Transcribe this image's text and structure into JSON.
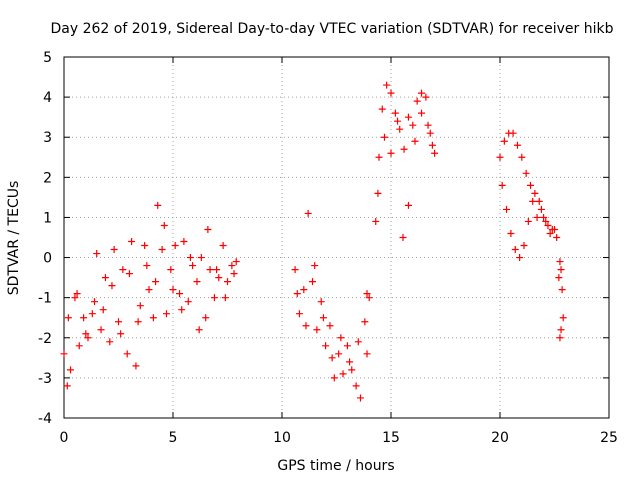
{
  "chart_data": {
    "type": "scatter",
    "title": "Day 262 of 2019, Sidereal Day-to-day VTEC variation (SDTVAR) for receiver hikb",
    "xlabel": "GPS time / hours",
    "ylabel": "SDTVAR / TECUs",
    "xlim": [
      0,
      25
    ],
    "ylim": [
      -4,
      5
    ],
    "x_ticks": [
      0,
      5,
      10,
      15,
      20,
      25
    ],
    "y_ticks": [
      -4,
      -3,
      -2,
      -1,
      0,
      1,
      2,
      3,
      4,
      5
    ],
    "grid": true,
    "marker": "+",
    "color": "#ff0000",
    "segments": [
      {
        "name": "segment-1",
        "x": [
          0.0,
          0.15,
          0.3,
          0.5,
          0.7,
          0.9,
          1.1,
          1.3,
          1.5,
          1.7,
          1.9,
          2.1,
          2.3,
          2.5,
          2.7,
          2.9,
          3.1,
          3.3,
          3.5,
          3.7,
          3.9,
          4.1,
          4.3,
          4.5,
          4.7,
          4.9,
          5.1,
          5.3,
          5.5,
          5.7,
          5.9,
          6.1,
          6.3,
          6.5,
          6.7,
          6.9,
          7.1,
          7.3,
          7.5,
          7.7,
          7.9
        ],
        "y": [
          -2.4,
          -3.2,
          -2.8,
          -1.0,
          -2.2,
          -1.5,
          -2.0,
          -1.4,
          0.1,
          -1.8,
          -0.5,
          -2.1,
          0.2,
          -1.6,
          -0.3,
          -2.4,
          0.4,
          -2.7,
          -1.2,
          0.3,
          -0.8,
          -1.5,
          1.3,
          0.2,
          -1.4,
          -0.3,
          0.3,
          -0.9,
          0.4,
          -1.1,
          -0.2,
          -0.6,
          0.0,
          -1.5,
          -0.3,
          -1.0,
          -0.5,
          0.3,
          -0.6,
          -0.2,
          -0.1
        ]
      },
      {
        "name": "segment-1-branch",
        "x": [
          0.2,
          0.6,
          1.0,
          1.4,
          1.8,
          2.2,
          2.6,
          3.0,
          3.4,
          3.8,
          4.2,
          4.6,
          5.0,
          5.4,
          5.8,
          6.2,
          6.6,
          7.0,
          7.4,
          7.8
        ],
        "y": [
          -1.5,
          -0.9,
          -1.9,
          -1.1,
          -1.3,
          -0.7,
          -1.9,
          -0.4,
          -1.6,
          -0.2,
          -0.6,
          0.8,
          -0.8,
          -1.3,
          0.0,
          -1.8,
          0.7,
          -0.3,
          -1.0,
          -0.4
        ]
      },
      {
        "name": "segment-2",
        "x": [
          10.6,
          10.8,
          11.0,
          11.2,
          11.4,
          11.6,
          11.8,
          12.0,
          12.2,
          12.4,
          12.6,
          12.8,
          13.0,
          13.2,
          13.4,
          13.6,
          13.8,
          13.9,
          14.0
        ],
        "y": [
          -0.3,
          -1.4,
          -0.8,
          1.1,
          -0.6,
          -1.8,
          -1.1,
          -2.2,
          -1.7,
          -3.0,
          -2.4,
          -2.9,
          -2.2,
          -2.8,
          -3.2,
          -3.5,
          -1.6,
          -0.9,
          -1.0
        ]
      },
      {
        "name": "segment-2-branch",
        "x": [
          10.7,
          11.1,
          11.5,
          11.9,
          12.3,
          12.7,
          13.1,
          13.5,
          13.9
        ],
        "y": [
          -0.9,
          -1.7,
          -0.2,
          -1.5,
          -2.5,
          -2.0,
          -2.6,
          -2.1,
          -2.4
        ]
      },
      {
        "name": "segment-3",
        "x": [
          14.3,
          14.45,
          14.6,
          14.8,
          15.0,
          15.2,
          15.4,
          15.6,
          15.8,
          16.0,
          16.2,
          16.4,
          16.6,
          16.8,
          17.0
        ],
        "y": [
          0.9,
          2.5,
          3.7,
          4.3,
          4.1,
          3.6,
          3.2,
          2.7,
          3.5,
          3.3,
          3.9,
          4.1,
          4.0,
          3.1,
          2.6
        ]
      },
      {
        "name": "segment-3-branch",
        "x": [
          14.4,
          14.7,
          15.0,
          15.3,
          15.55,
          15.8,
          16.1,
          16.4,
          16.7,
          16.9
        ],
        "y": [
          1.6,
          3.0,
          2.6,
          3.4,
          0.5,
          1.3,
          2.9,
          3.6,
          3.3,
          2.8
        ]
      },
      {
        "name": "segment-4",
        "x": [
          20.0,
          20.2,
          20.4,
          20.6,
          20.8,
          21.0,
          21.2,
          21.4,
          21.6,
          21.8,
          22.0,
          22.2,
          22.4,
          22.6
        ],
        "y": [
          2.5,
          2.9,
          3.1,
          3.1,
          2.8,
          2.5,
          2.1,
          1.8,
          1.6,
          1.4,
          1.0,
          0.8,
          0.7,
          0.5
        ]
      },
      {
        "name": "segment-4-branch",
        "x": [
          20.1,
          20.3,
          20.5,
          20.7,
          20.9,
          21.1,
          21.3,
          21.5,
          21.7,
          21.9,
          22.1,
          22.3,
          22.5
        ],
        "y": [
          1.8,
          1.2,
          0.6,
          0.2,
          0.0,
          0.3,
          0.9,
          1.4,
          1.0,
          1.2,
          0.9,
          0.6,
          0.7
        ]
      },
      {
        "name": "segment-5",
        "x": [
          22.7,
          22.75,
          22.8,
          22.85,
          22.9,
          22.8,
          22.75
        ],
        "y": [
          -0.5,
          -0.1,
          -0.3,
          -0.8,
          -1.5,
          -1.8,
          -2.0
        ]
      }
    ]
  }
}
